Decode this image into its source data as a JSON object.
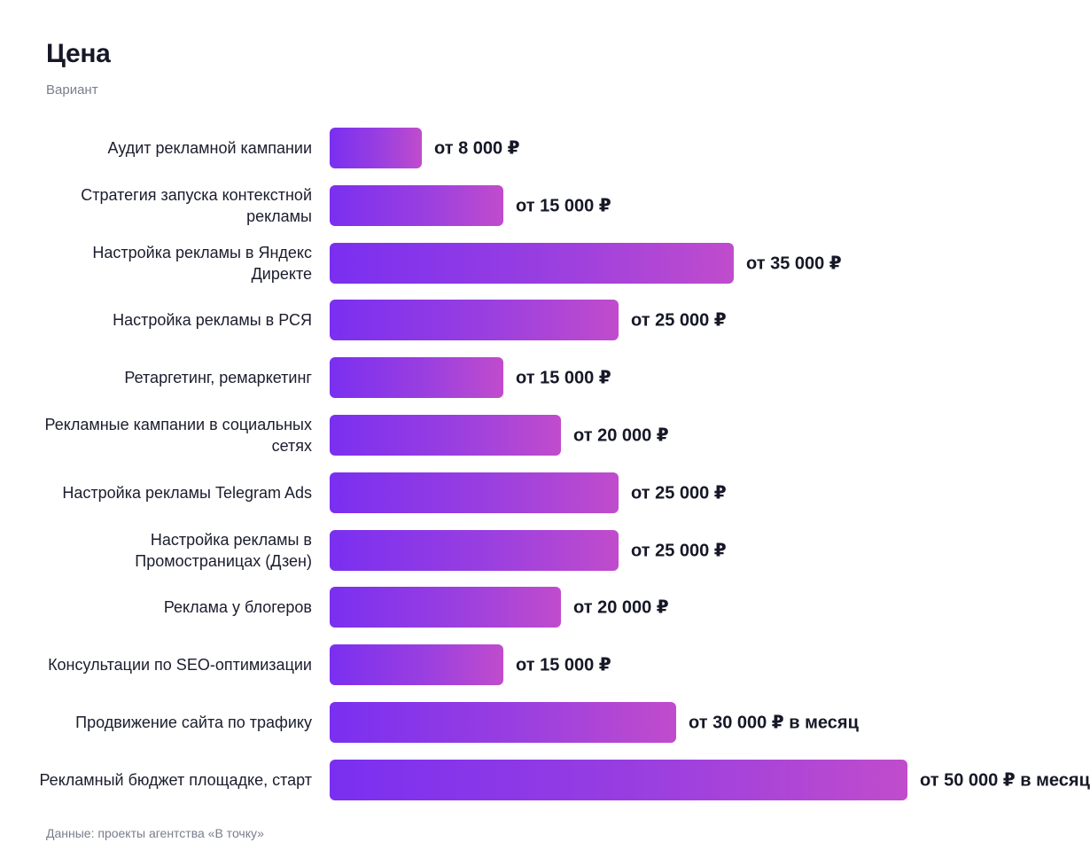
{
  "title": "Цена",
  "subtitle": "Вариант",
  "footer": "Данные: проекты агентства «В точку»",
  "colors": {
    "bar_gradient_start": "#7a2ff0",
    "bar_gradient_end": "#c04ccc",
    "text": "#1b1d2e",
    "muted": "#7a7d8c"
  },
  "chart_data": {
    "type": "bar",
    "orientation": "horizontal",
    "title": "Цена",
    "subtitle": "Вариант",
    "categories": [
      "Аудит рекламной кампании",
      "Стратегия запуска контекстной рекламы",
      "Настройка рекламы в Яндекс Директе",
      "Настройка рекламы в РСЯ",
      "Ретаргетинг, ремаркетинг",
      "Рекламные кампании в социальных сетях",
      "Настройка рекламы Telegram Ads",
      "Настройка рекламы в Промостраницах (Дзен)",
      "Реклама у блогеров",
      "Консультации по SEO-оптимизации",
      "Продвижение сайта по трафику",
      "Рекламный бюджет площадке, старт"
    ],
    "values": [
      8000,
      15000,
      35000,
      25000,
      15000,
      20000,
      25000,
      25000,
      20000,
      15000,
      30000,
      50000
    ],
    "value_labels": [
      "от 8 000 ₽",
      "от 15 000 ₽",
      "от 35 000 ₽",
      "от 25 000 ₽",
      "от 15 000 ₽",
      "от 20 000 ₽",
      "от 25 000 ₽",
      "от 25 000 ₽",
      "от 20 000 ₽",
      "от 15 000 ₽",
      "от 30 000 ₽ в месяц",
      "от 50 000 ₽ в месяц"
    ],
    "xlim": [
      0,
      50000
    ],
    "grid": false,
    "legend": "none"
  }
}
